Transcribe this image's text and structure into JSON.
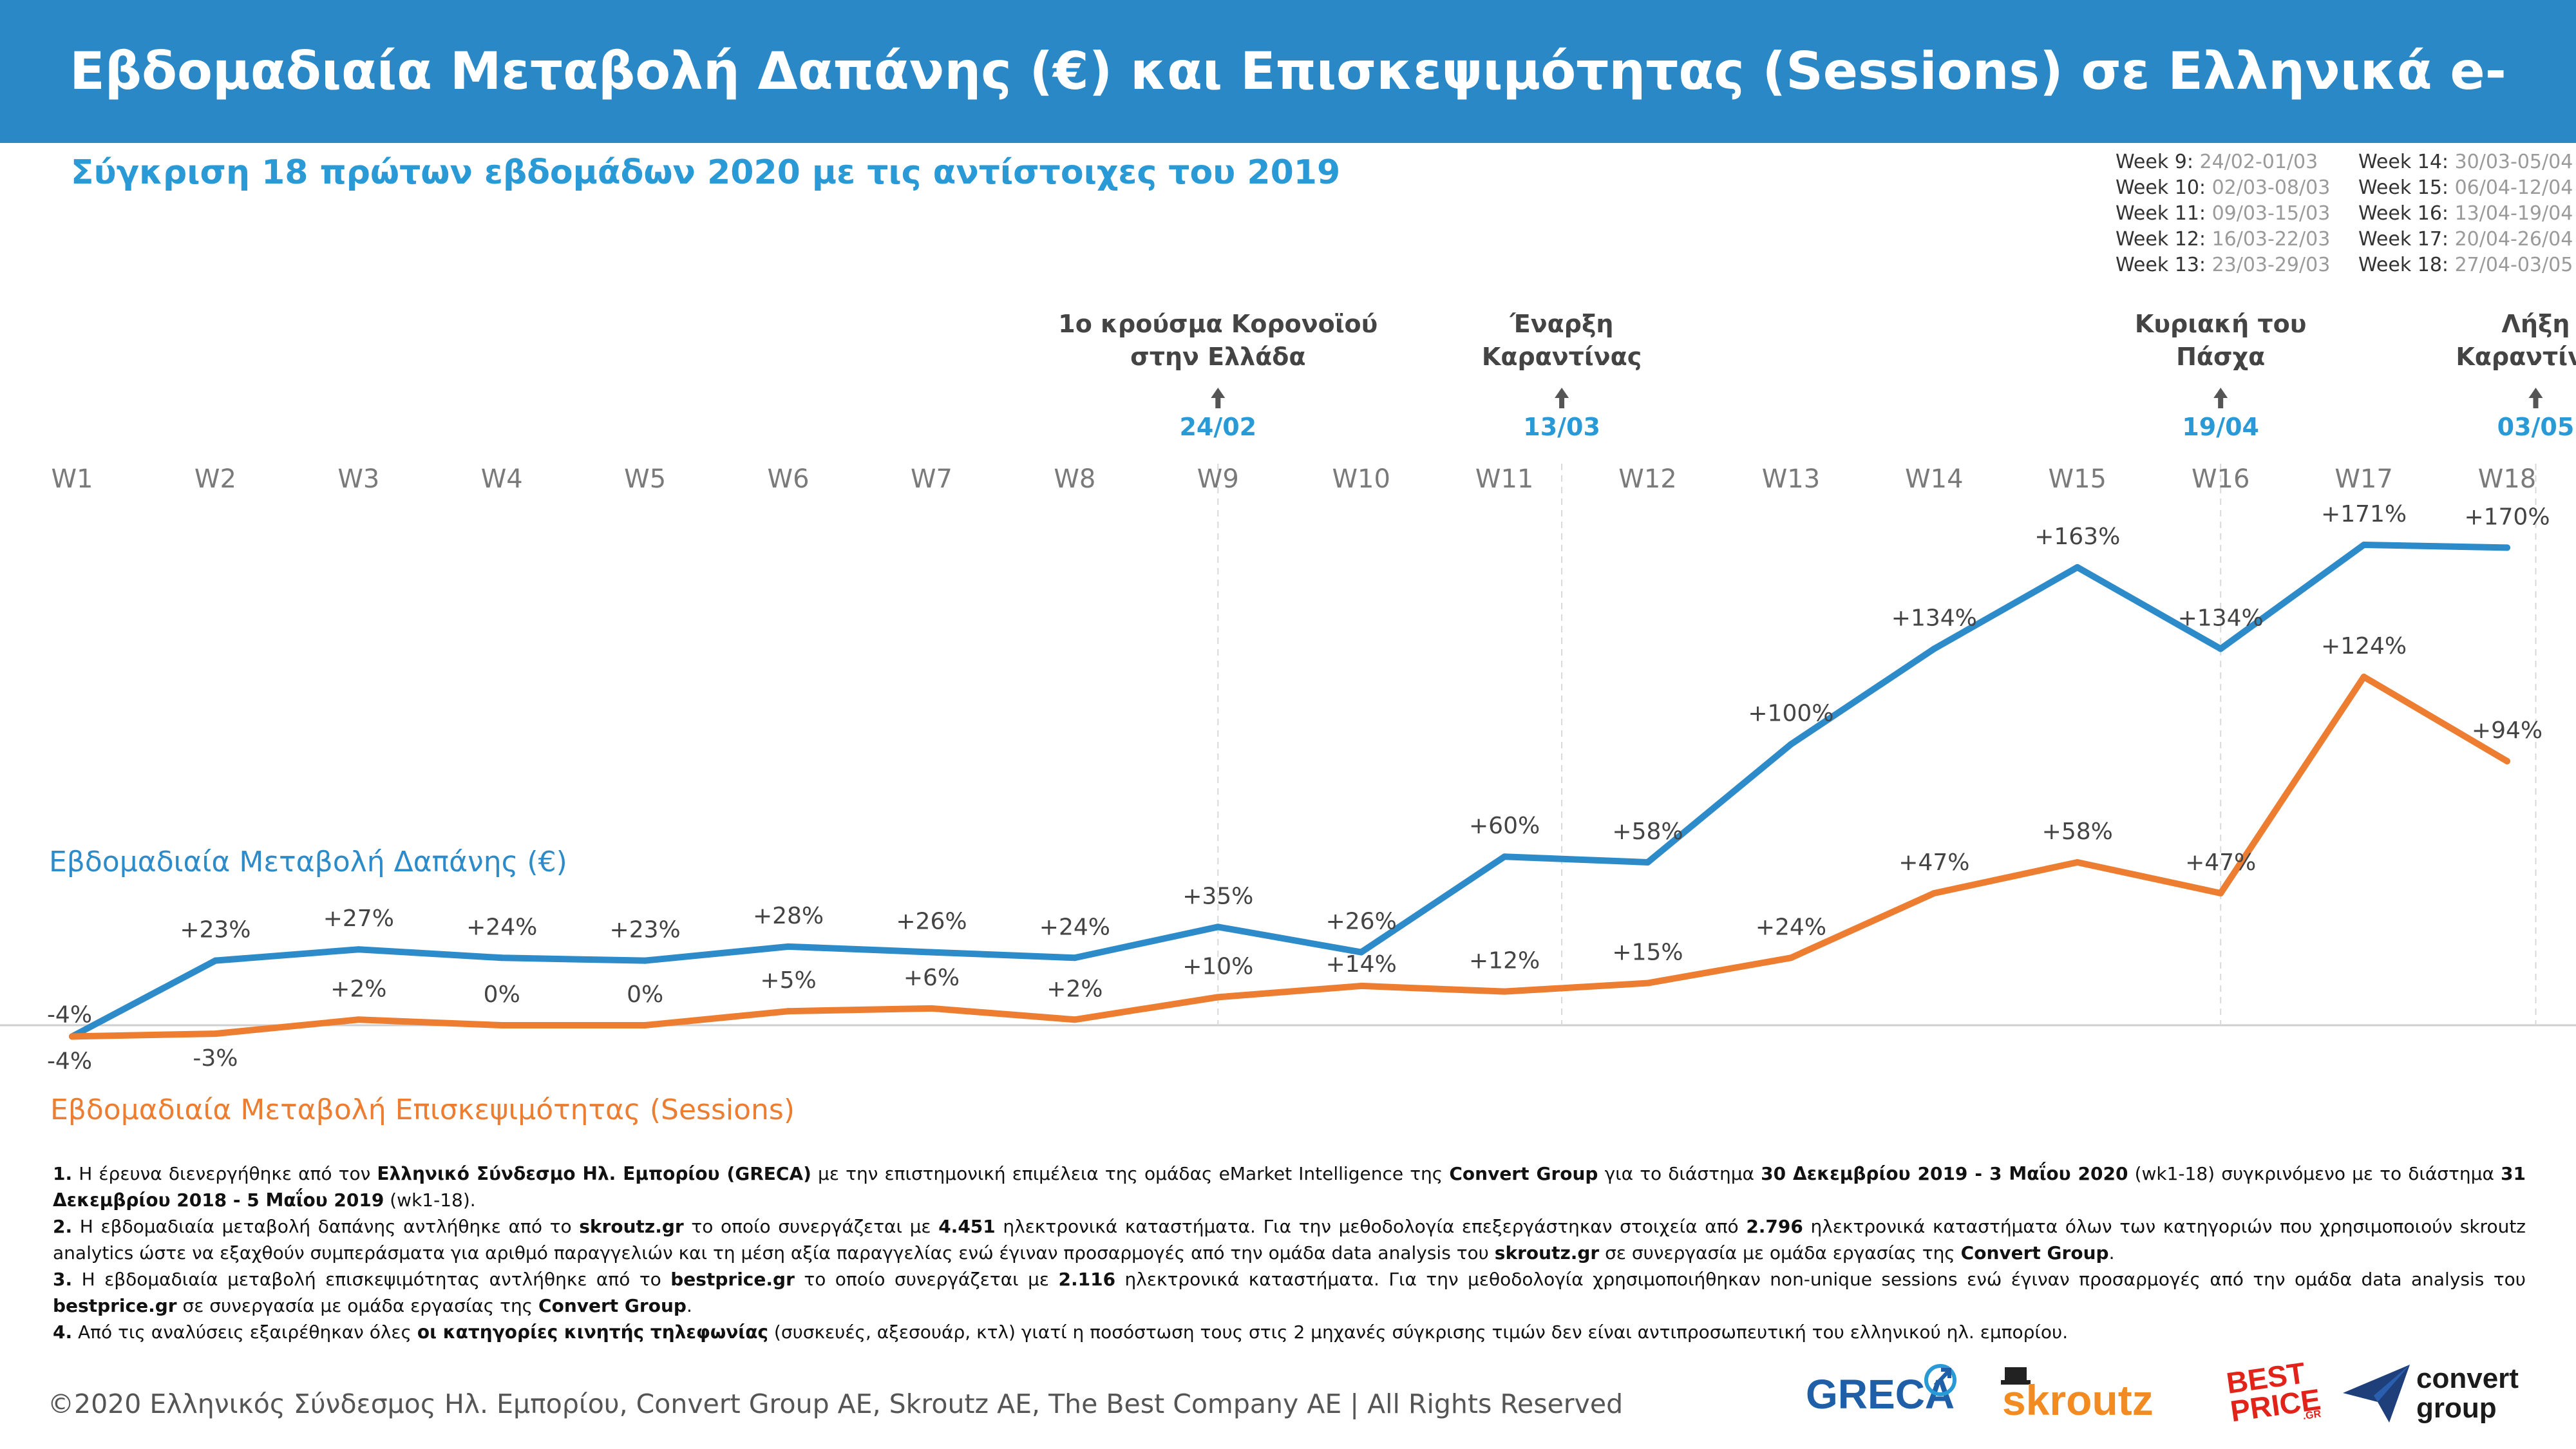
{
  "header": {
    "title": "Εβδομαδιαία Μεταβολή Δαπάνης (€) και Επισκεψιμότητας (Sessions) σε Ελληνικά e-shops"
  },
  "subtitle": "Σύγκριση 18 πρώτων εβδομάδων 2020 με τις αντίστοιχες του 2019",
  "week_ranges": [
    [
      {
        "label": "Week 9:",
        "range": "24/02-01/03"
      },
      {
        "label": "Week 10:",
        "range": "02/03-08/03"
      },
      {
        "label": "Week 11:",
        "range": "09/03-15/03"
      },
      {
        "label": "Week 12:",
        "range": "16/03-22/03"
      },
      {
        "label": "Week 13:",
        "range": "23/03-29/03"
      }
    ],
    [
      {
        "label": "Week 14:",
        "range": "30/03-05/04"
      },
      {
        "label": "Week 15:",
        "range": "06/04-12/04"
      },
      {
        "label": "Week 16:",
        "range": "13/04-19/04"
      },
      {
        "label": "Week 17:",
        "range": "20/04-26/04"
      },
      {
        "label": "Week 18:",
        "range": "27/04-03/05"
      }
    ]
  ],
  "chart_data": {
    "type": "line",
    "categories": [
      "W1",
      "W2",
      "W3",
      "W4",
      "W5",
      "W6",
      "W7",
      "W8",
      "W9",
      "W10",
      "W11",
      "W12",
      "W13",
      "W14",
      "W15",
      "W16",
      "W17",
      "W18"
    ],
    "series": [
      {
        "name": "Εβδομαδιαία Μεταβολή Δαπάνης (€)",
        "color": "#2e8bc9",
        "values": [
          -4,
          23,
          27,
          24,
          23,
          28,
          26,
          24,
          35,
          26,
          60,
          58,
          100,
          134,
          163,
          134,
          171,
          170
        ],
        "labels": [
          "-4%",
          "+23%",
          "+27%",
          "+24%",
          "+23%",
          "+28%",
          "+26%",
          "+24%",
          "+35%",
          "+26%",
          "+60%",
          "+58%",
          "+100%",
          "+134%",
          "+163%",
          "+134%",
          "+171%",
          "+170%"
        ]
      },
      {
        "name": "Εβδομαδιαία Μεταβολή Επισκεψιμότητας (Sessions)",
        "color": "#ec7d31",
        "values": [
          -4,
          -3,
          2,
          0,
          0,
          5,
          6,
          2,
          10,
          14,
          12,
          15,
          24,
          47,
          58,
          47,
          124,
          94
        ],
        "labels": [
          "-4%",
          "-3%",
          "+2%",
          "0%",
          "0%",
          "+5%",
          "+6%",
          "+2%",
          "+10%",
          "+14%",
          "+12%",
          "+15%",
          "+24%",
          "+47%",
          "+58%",
          "+47%",
          "+124%",
          "+94%"
        ]
      }
    ],
    "ylim": [
      -4,
      171
    ],
    "grid": false,
    "events": [
      {
        "position": 9,
        "line1": "1ο κρούσμα Κορονοϊού",
        "line2": "στην Ελλάδα",
        "date": "24/02"
      },
      {
        "position": 11.4,
        "line1": "Έναρξη",
        "line2": "Καραντίνας",
        "date": "13/03"
      },
      {
        "position": 16,
        "line1": "Κυριακή του",
        "line2": "Πάσχα",
        "date": "19/04"
      },
      {
        "position": 18.2,
        "line1": "Λήξη",
        "line2": "Καραντίνας",
        "date": "03/05"
      }
    ]
  },
  "notes": [
    [
      {
        "t": "1.",
        "b": true
      },
      {
        "t": " Η έρευνα διενεργήθηκε από τον "
      },
      {
        "t": "Ελληνικό Σύνδεσμο Ηλ. Εμπορίου (GRECA)",
        "b": true
      },
      {
        "t": " με την επιστημονική επιμέλεια της ομάδας eMarket Intelligence της "
      },
      {
        "t": "Convert Group",
        "b": true
      },
      {
        "t": " για το διάστημα "
      },
      {
        "t": "30 Δεκεμβρίου 2019 - 3 Μαΐου 2020",
        "b": true
      },
      {
        "t": " (wk1-18) συγκρινόμενο με το διάστημα "
      },
      {
        "t": "31 Δεκεμβρίου 2018 - 5 Μαΐου 2019",
        "b": true
      },
      {
        "t": " (wk1-18)."
      }
    ],
    [
      {
        "t": "2.",
        "b": true
      },
      {
        "t": " Η εβδομαδιαία μεταβολή δαπάνης αντλήθηκε από το "
      },
      {
        "t": "skroutz.gr",
        "b": true
      },
      {
        "t": " το οποίο συνεργάζεται με "
      },
      {
        "t": "4.451",
        "b": true
      },
      {
        "t": " ηλεκτρονικά καταστήματα. Για την μεθοδολογία επεξεργάστηκαν στοιχεία από "
      },
      {
        "t": "2.796",
        "b": true
      },
      {
        "t": " ηλεκτρονικά καταστήματα όλων των κατηγοριών που χρησιμοποιούν skroutz analytics ώστε να εξαχθούν συμπεράσματα για αριθμό παραγγελιών και τη μέση αξία παραγγελίας ενώ έγιναν προσαρμογές από την ομάδα data analysis του "
      },
      {
        "t": "skroutz.gr",
        "b": true
      },
      {
        "t": " σε συνεργασία με ομάδα εργασίας της "
      },
      {
        "t": "Convert Group",
        "b": true
      },
      {
        "t": "."
      }
    ],
    [
      {
        "t": "3.",
        "b": true
      },
      {
        "t": " Η εβδομαδιαία μεταβολή επισκεψιμότητας αντλήθηκε από το "
      },
      {
        "t": "bestprice.gr",
        "b": true
      },
      {
        "t": " το οποίο συνεργάζεται με "
      },
      {
        "t": "2.116",
        "b": true
      },
      {
        "t": " ηλεκτρονικά καταστήματα. Για την μεθοδολογία χρησιμοποιήθηκαν non-unique sessions ενώ έγιναν προσαρμογές από την ομάδα data analysis του "
      },
      {
        "t": "bestprice.gr",
        "b": true
      },
      {
        "t": " σε συνεργασία με ομάδα εργασίας της "
      },
      {
        "t": "Convert Group",
        "b": true
      },
      {
        "t": "."
      }
    ],
    [
      {
        "t": "4.",
        "b": true
      },
      {
        "t": " Από τις αναλύσεις εξαιρέθηκαν όλες "
      },
      {
        "t": "οι κατηγορίες κινητής τηλεφωνίας",
        "b": true
      },
      {
        "t": " (συσκευές, αξεσουάρ, κτλ) γιατί η ποσόστωση τους στις 2 μηχανές σύγκρισης τιμών δεν είναι αντιπροσωπευτική του ελληνικού ηλ. εμπορίου."
      }
    ]
  ],
  "footer": {
    "copyright": "©2020 Ελληνικός Σύνδεσμος Ηλ. Εμπορίου, Convert Group AE, Skroutz AE, The Best Company AE | All Rights Reserved"
  },
  "logos": {
    "greca": "GRECA",
    "skroutz": "skroutz",
    "best_1": "BEST",
    "best_2": "PRICE",
    "best_3": ".GR",
    "convert_1": "convert",
    "convert_2": "group"
  }
}
